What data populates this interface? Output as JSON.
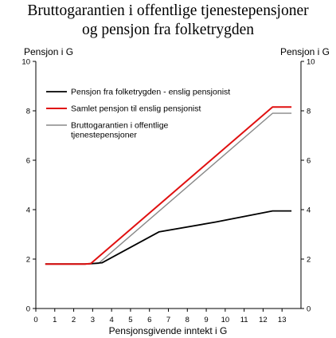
{
  "chart_data": {
    "type": "line",
    "title_line1": "Bruttogarantien i offentlige tjenestepensjoner",
    "title_line2": "og pensjon fra folketrygden",
    "ylabel_left": "Pensjon i G",
    "ylabel_right": "Pensjon i G",
    "xlabel": "Pensjonsgivende inntekt i G",
    "xlim": [
      0,
      14
    ],
    "ylim": [
      0,
      10
    ],
    "x_ticks": [
      0,
      1,
      2,
      3,
      4,
      5,
      6,
      7,
      8,
      9,
      10,
      11,
      12,
      13
    ],
    "y_ticks": [
      0,
      2,
      4,
      6,
      8,
      10
    ],
    "grid": false,
    "legend_position": "top-left",
    "series": [
      {
        "name": "Pensjon fra folketrygden - enslig pensjonist",
        "color": "#000000",
        "x": [
          0.5,
          2.6,
          3.0,
          3.5,
          6.5,
          9.5,
          12.5,
          13.5
        ],
        "y": [
          1.8,
          1.8,
          1.82,
          1.85,
          3.1,
          3.5,
          3.95,
          3.95
        ]
      },
      {
        "name": "Samlet pensjon til enslig pensjonist",
        "color": "#e01010",
        "x": [
          0.5,
          2.6,
          2.9,
          12.5,
          13.5
        ],
        "y": [
          1.8,
          1.8,
          1.82,
          8.15,
          8.15
        ]
      },
      {
        "name": "Bruttogarantien i offentlige tjenestepensjoner",
        "color": "#888888",
        "x": [
          0.5,
          2.6,
          3.3,
          12.5,
          13.5
        ],
        "y": [
          1.8,
          1.8,
          1.82,
          7.9,
          7.9
        ]
      }
    ],
    "legend_labels": [
      [
        "Pensjon fra folketrygden - enslig pensjonist"
      ],
      [
        "Samlet pensjon til enslig pensjonist"
      ],
      [
        "Bruttogarantien i offentlige",
        "tjenestepensjoner"
      ]
    ]
  }
}
